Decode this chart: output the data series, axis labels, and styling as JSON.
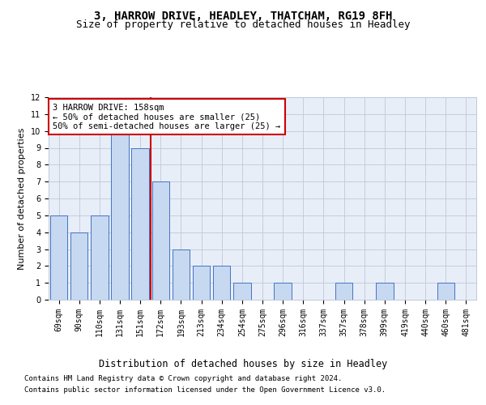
{
  "title1": "3, HARROW DRIVE, HEADLEY, THATCHAM, RG19 8FH",
  "title2": "Size of property relative to detached houses in Headley",
  "xlabel": "Distribution of detached houses by size in Headley",
  "ylabel": "Number of detached properties",
  "categories": [
    "69sqm",
    "90sqm",
    "110sqm",
    "131sqm",
    "151sqm",
    "172sqm",
    "193sqm",
    "213sqm",
    "234sqm",
    "254sqm",
    "275sqm",
    "296sqm",
    "316sqm",
    "337sqm",
    "357sqm",
    "378sqm",
    "399sqm",
    "419sqm",
    "440sqm",
    "460sqm",
    "481sqm"
  ],
  "values": [
    5,
    4,
    5,
    10,
    9,
    7,
    3,
    2,
    2,
    1,
    0,
    1,
    0,
    0,
    1,
    0,
    1,
    0,
    0,
    1,
    0
  ],
  "bar_color": "#c6d9f1",
  "bar_edge_color": "#4472c4",
  "red_line_x": 4.5,
  "ylim": [
    0,
    12
  ],
  "yticks": [
    0,
    1,
    2,
    3,
    4,
    5,
    6,
    7,
    8,
    9,
    10,
    11,
    12
  ],
  "annotation_line1": "3 HARROW DRIVE: 158sqm",
  "annotation_line2": "← 50% of detached houses are smaller (25)",
  "annotation_line3": "50% of semi-detached houses are larger (25) →",
  "annotation_box_color": "#ffffff",
  "annotation_box_edge_color": "#cc0000",
  "footer1": "Contains HM Land Registry data © Crown copyright and database right 2024.",
  "footer2": "Contains public sector information licensed under the Open Government Licence v3.0.",
  "background_color": "#ffffff",
  "plot_bg_color": "#e8eef8",
  "grid_color": "#c0c8d8",
  "title1_fontsize": 10,
  "title2_fontsize": 9,
  "xlabel_fontsize": 8.5,
  "ylabel_fontsize": 8,
  "tick_fontsize": 7,
  "footer_fontsize": 6.5,
  "annotation_fontsize": 7.5
}
